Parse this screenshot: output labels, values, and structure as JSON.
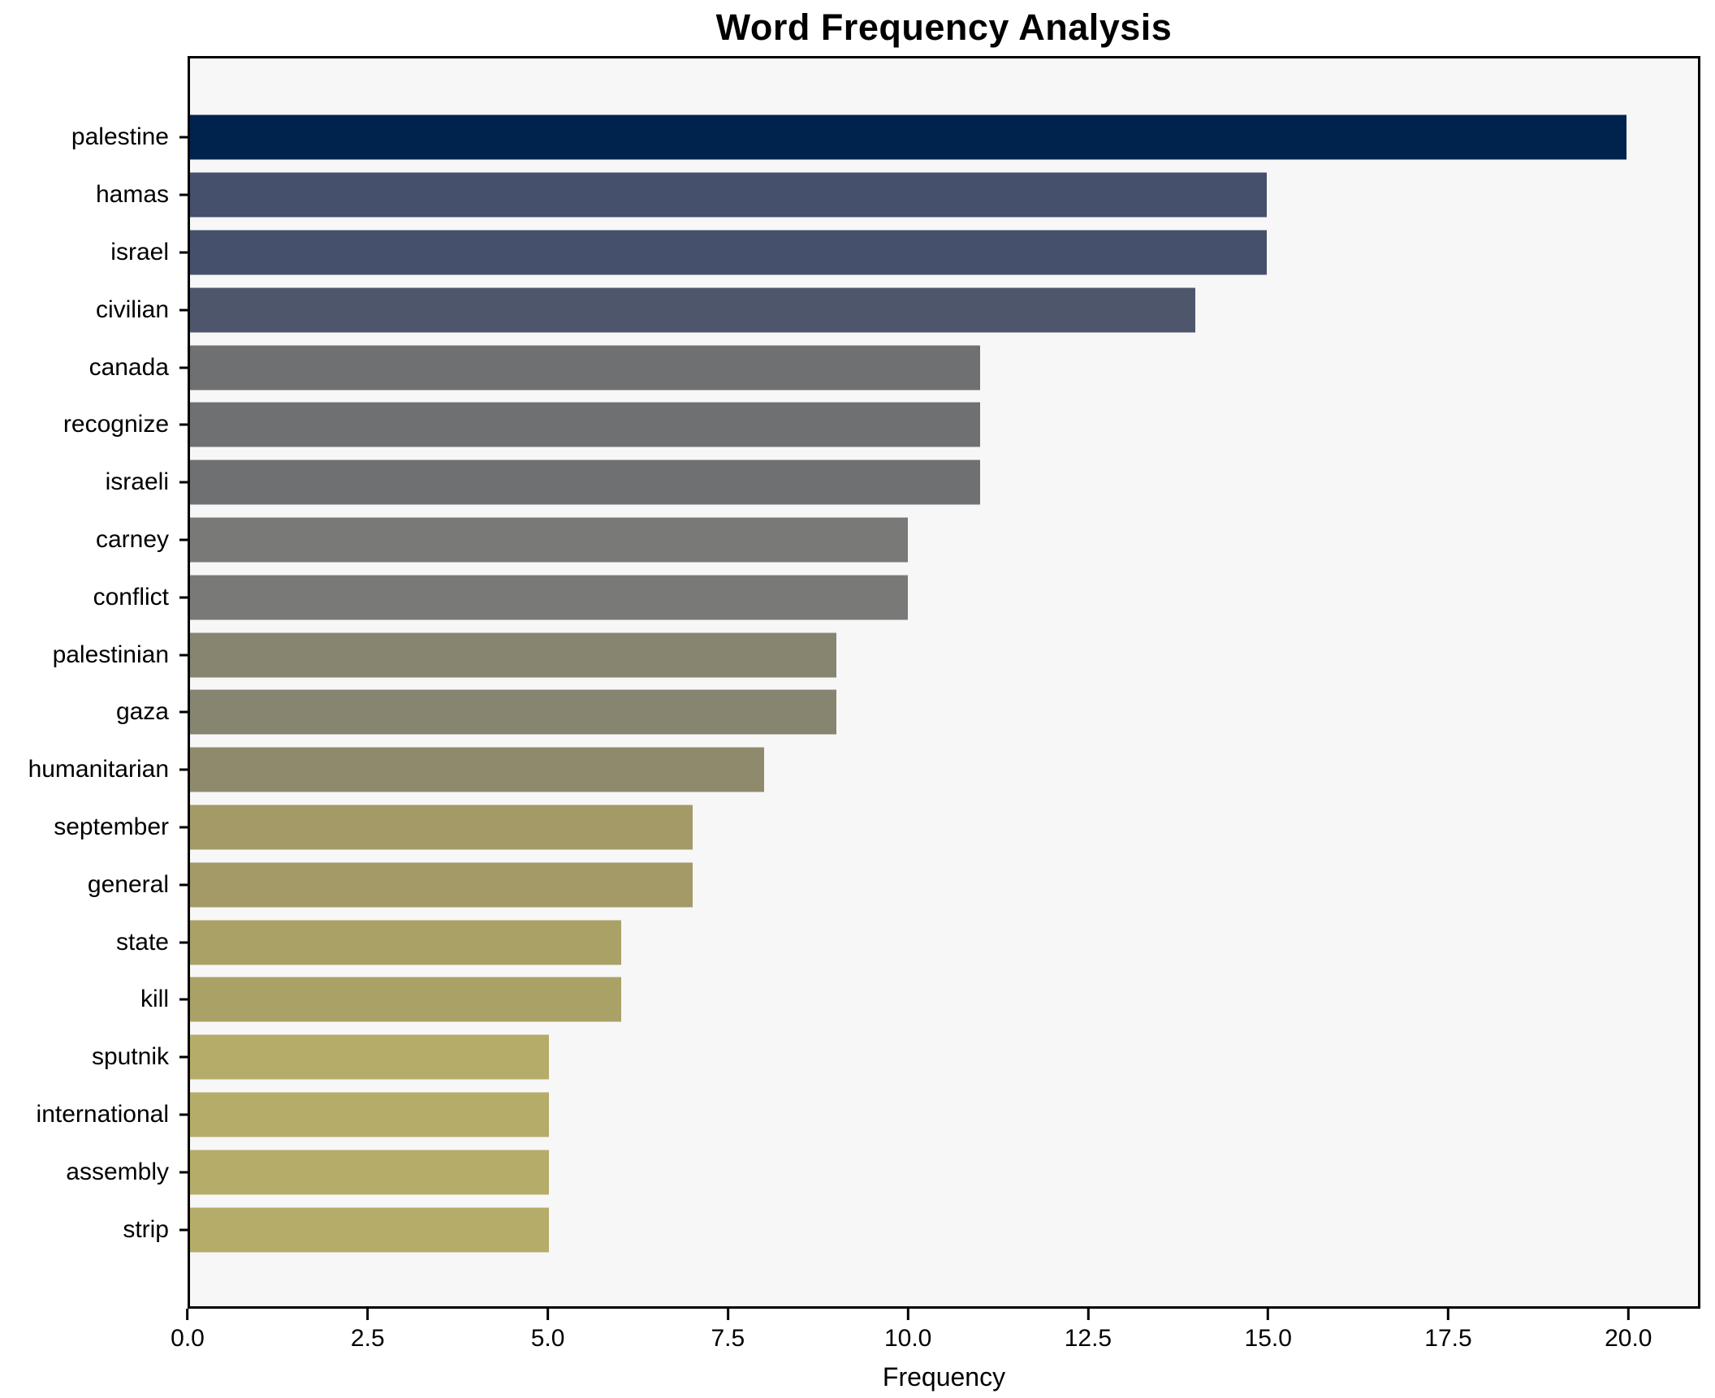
{
  "chart_data": {
    "type": "bar",
    "orientation": "horizontal",
    "title": "Word Frequency Analysis",
    "xlabel": "Frequency",
    "ylabel": "",
    "categories": [
      "palestine",
      "hamas",
      "israel",
      "civilian",
      "canada",
      "recognize",
      "israeli",
      "carney",
      "conflict",
      "palestinian",
      "gaza",
      "humanitarian",
      "september",
      "general",
      "state",
      "kill",
      "sputnik",
      "international",
      "assembly",
      "strip"
    ],
    "values": [
      20,
      15,
      15,
      14,
      11,
      11,
      11,
      10,
      10,
      9,
      9,
      8,
      7,
      7,
      6,
      6,
      5,
      5,
      5,
      5
    ],
    "bar_colors": [
      "#00234e",
      "#44506c",
      "#44506c",
      "#4e566b",
      "#6e7072",
      "#6e7072",
      "#6e7072",
      "#797a77",
      "#797a77",
      "#878470",
      "#878470",
      "#908a6d",
      "#a39a67",
      "#a39a67",
      "#aaa166",
      "#aaa166",
      "#b6ac6a",
      "#b6ac6a",
      "#b6ac6a",
      "#b6ac6a"
    ],
    "x_ticks": [
      0,
      2.5,
      5,
      7.5,
      10,
      12.5,
      15,
      17.5,
      20
    ],
    "x_tick_labels": [
      "0.0",
      "2.5",
      "5.0",
      "7.5",
      "10.0",
      "12.5",
      "15.0",
      "17.5",
      "20.0"
    ],
    "xlim": [
      0,
      21
    ],
    "grid": false,
    "legend_position": "none",
    "plot_background": "#f7f7f8",
    "figure_background": "#ffffff",
    "spine_color": "#000000",
    "text_color": "#000000"
  }
}
